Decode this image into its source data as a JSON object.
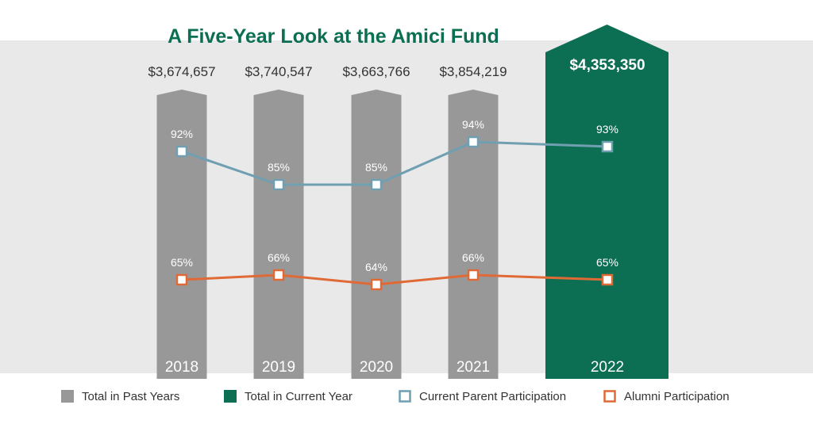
{
  "chart_data": {
    "type": "bar",
    "title": "A Five-Year Look at the Amici Fund",
    "categories": [
      "2018",
      "2019",
      "2020",
      "2021",
      "2022"
    ],
    "totals": {
      "values": [
        3674657,
        3740547,
        3663766,
        3854219,
        4353350
      ],
      "labels": [
        "$3,674,657",
        "$3,740,547",
        "$3,663,766",
        "$3,854,219",
        "$4,353,350"
      ]
    },
    "current_index": 4,
    "ylim": [
      0,
      4500000
    ],
    "line_ylim": [
      0,
      100
    ],
    "series": [
      {
        "name": "Current Parent Participation",
        "values": [
          92,
          85,
          85,
          94,
          93
        ],
        "labels": [
          "92%",
          "85%",
          "85%",
          "94%",
          "93%"
        ],
        "color": "#6f9fb0"
      },
      {
        "name": "Alumni Participation",
        "values": [
          65,
          66,
          64,
          66,
          65
        ],
        "labels": [
          "65%",
          "66%",
          "64%",
          "66%",
          "65%"
        ],
        "color": "#e06a35"
      }
    ],
    "legend": [
      {
        "label": "Total in Past Years",
        "type": "square-filled",
        "color": "#999899"
      },
      {
        "label": "Total in Current Year",
        "type": "square-filled",
        "color": "#0c6e52"
      },
      {
        "label": "Current Parent Participation",
        "type": "square-outline",
        "color": "#6f9fb0"
      },
      {
        "label": "Alumni Participation",
        "type": "square-outline",
        "color": "#e06a35"
      }
    ],
    "legend_position": "bottom",
    "grid": false,
    "colors": {
      "past_bar": "#999899",
      "current_bar": "#0c6e52",
      "background_panel": "#e9e9ea",
      "title": "#0c6e52"
    }
  }
}
